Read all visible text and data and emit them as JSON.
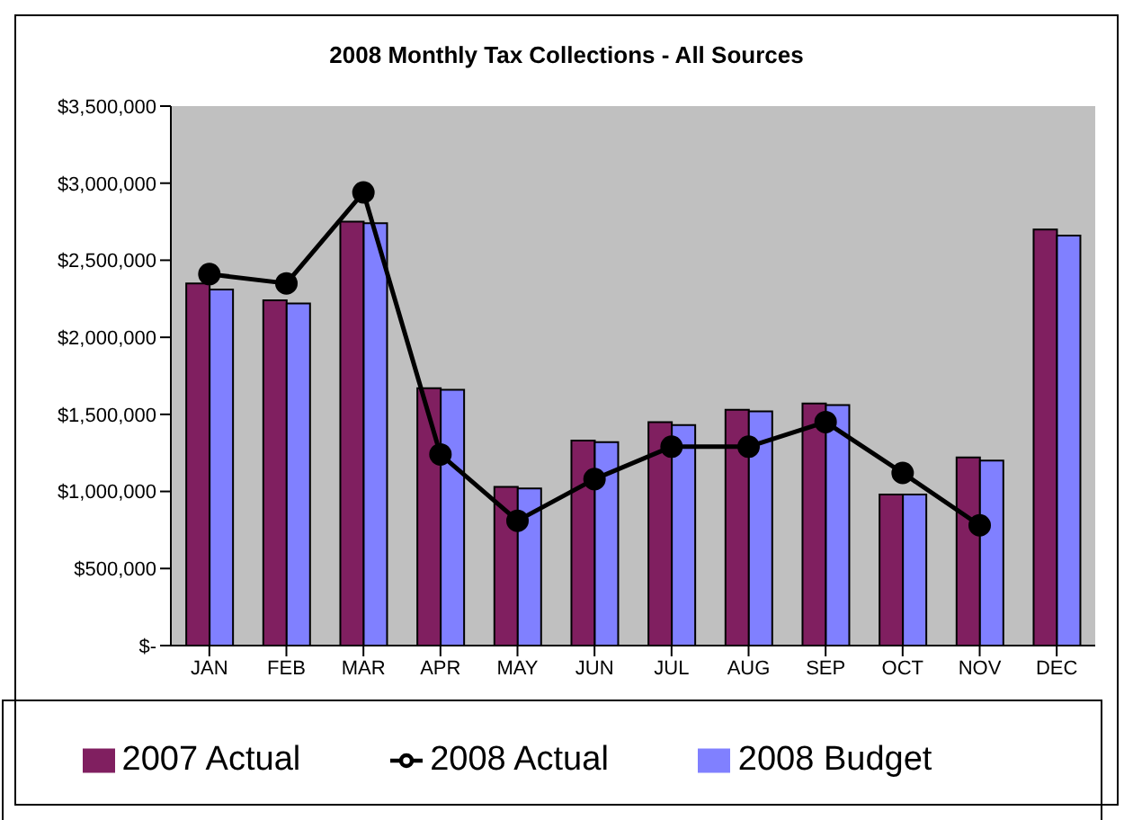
{
  "chart_data": {
    "type": "bar",
    "title": "2008 Monthly Tax Collections - All Sources",
    "categories": [
      "JAN",
      "FEB",
      "MAR",
      "APR",
      "MAY",
      "JUN",
      "JUL",
      "AUG",
      "SEP",
      "OCT",
      "NOV",
      "DEC"
    ],
    "series": [
      {
        "name": "2007 Actual",
        "color": "#801f60",
        "values": [
          2350000,
          2240000,
          2750000,
          1670000,
          1030000,
          1330000,
          1450000,
          1530000,
          1570000,
          980000,
          1220000,
          2700000
        ]
      },
      {
        "name": "2008 Budget",
        "color": "#8080ff",
        "values": [
          2310000,
          2220000,
          2740000,
          1660000,
          1020000,
          1320000,
          1430000,
          1520000,
          1560000,
          980000,
          1200000,
          2660000
        ]
      },
      {
        "name": "2008 Actual",
        "type": "line",
        "color": "#000000",
        "values": [
          2410000,
          2350000,
          2940000,
          1240000,
          810000,
          1080000,
          1290000,
          1290000,
          1450000,
          1120000,
          780000,
          null
        ]
      }
    ],
    "ylim": [
      0,
      3500000
    ],
    "yticks": [
      {
        "value": 0,
        "label": "$-"
      },
      {
        "value": 500000,
        "label": "$500,000"
      },
      {
        "value": 1000000,
        "label": "$1,000,000"
      },
      {
        "value": 1500000,
        "label": "$1,500,000"
      },
      {
        "value": 2000000,
        "label": "$2,000,000"
      },
      {
        "value": 2500000,
        "label": "$2,500,000"
      },
      {
        "value": 3000000,
        "label": "$3,000,000"
      },
      {
        "value": 3500000,
        "label": "$3,500,000"
      }
    ],
    "grid": false,
    "legend": "bottom",
    "marker": "circle",
    "line_style": "solid"
  }
}
